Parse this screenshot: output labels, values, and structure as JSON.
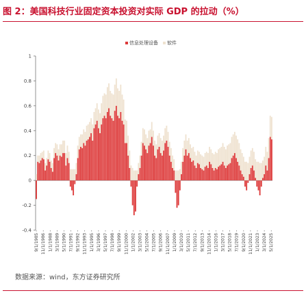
{
  "title": "图 2：美国科技行业固定资本投资对实际 GDP 的拉动（%）",
  "source": "数据来源：wind，东方证券研究所",
  "colors": {
    "title": "#c8102e",
    "series1": "#dd3a3a",
    "series2": "#efe2d0",
    "axis": "#777777"
  },
  "chart_data": {
    "type": "bar",
    "stacked": true,
    "ylim": [
      -0.4,
      1.0
    ],
    "yticks": [
      "-0.4",
      "-0.2",
      "0",
      "0.2",
      "0.4",
      "0.6",
      "0.8",
      "1"
    ],
    "xticks": [
      "9/1/1985",
      "11/1/1986",
      "1/1/1988",
      "3/1/1989",
      "5/1/1990",
      "7/1/1991",
      "9/1/1992",
      "11/1/1993",
      "1/1/1995",
      "3/1/1996",
      "5/1/1997",
      "7/1/1998",
      "9/1/1999",
      "11/1/2000",
      "1/1/2002",
      "3/1/2003",
      "5/1/2004",
      "7/1/2005",
      "9/1/2006",
      "11/1/2007",
      "1/1/2009",
      "3/1/2010",
      "5/1/2011",
      "7/1/2012",
      "9/1/2013",
      "11/1/2014",
      "1/1/2016",
      "3/1/2017",
      "5/1/2018",
      "7/1/2019",
      "9/1/2020",
      "11/1/2021",
      "1/1/2023",
      "3/1/2024",
      "5/1/2025"
    ],
    "x_start": "9/1/1985",
    "legend_position": "top",
    "grid": false,
    "series": [
      {
        "name": "信息处理设备",
        "values": [
          -0.15,
          0.15,
          0.14,
          0.16,
          0.18,
          0.17,
          0.08,
          0.12,
          0.17,
          0.15,
          0.1,
          0.07,
          0.18,
          0.22,
          0.2,
          0.16,
          0.2,
          0.19,
          0.22,
          0.22,
          0.12,
          0.18,
          0.14,
          -0.05,
          -0.08,
          -0.12,
          -0.03,
          0.05,
          0.18,
          0.25,
          0.27,
          0.26,
          0.3,
          0.28,
          0.32,
          0.33,
          0.35,
          0.38,
          0.32,
          0.42,
          0.45,
          0.48,
          0.42,
          0.38,
          0.45,
          0.5,
          0.52,
          0.5,
          0.55,
          0.58,
          0.52,
          0.5,
          0.48,
          0.56,
          0.6,
          0.52,
          0.5,
          0.55,
          0.48,
          0.45,
          0.3,
          0.3,
          0.2,
          0.1,
          -0.05,
          -0.2,
          -0.28,
          -0.25,
          -0.05,
          0.05,
          0.1,
          0.2,
          0.3,
          0.28,
          0.25,
          0.22,
          0.28,
          0.3,
          0.35,
          0.28,
          0.2,
          0.18,
          0.25,
          0.27,
          0.22,
          0.2,
          0.24,
          0.3,
          0.32,
          0.27,
          0.2,
          0.15,
          0.1,
          0.08,
          -0.1,
          -0.22,
          -0.2,
          -0.08,
          0.05,
          0.15,
          0.2,
          0.25,
          0.2,
          0.22,
          0.18,
          0.15,
          0.16,
          0.12,
          0.1,
          0.14,
          0.13,
          0.1,
          0.09,
          0.08,
          0.11,
          0.12,
          0.1,
          0.15,
          0.13,
          0.1,
          0.08,
          0.1,
          0.09,
          0.11,
          0.12,
          0.13,
          0.15,
          0.12,
          0.1,
          0.12,
          0.13,
          0.14,
          0.18,
          0.2,
          0.22,
          0.18,
          0.15,
          0.12,
          0.08,
          0.05,
          0.03,
          -0.05,
          -0.08,
          -0.02,
          0.05,
          0.1,
          0.12,
          0.08,
          0.02,
          -0.05,
          -0.08,
          -0.12,
          -0.05,
          0.02,
          0.05,
          0.12,
          0.08,
          0.18,
          0.35,
          0.33
        ]
      },
      {
        "name": "软件",
        "values": [
          0.05,
          0.05,
          0.06,
          0.06,
          0.05,
          0.07,
          0.06,
          0.06,
          0.07,
          0.07,
          0.06,
          0.07,
          0.08,
          0.08,
          0.09,
          0.09,
          0.09,
          0.1,
          0.1,
          0.1,
          0.1,
          0.1,
          0.09,
          0.09,
          0.09,
          0.09,
          0.09,
          0.09,
          0.1,
          0.1,
          0.1,
          0.11,
          0.11,
          0.11,
          0.12,
          0.12,
          0.12,
          0.12,
          0.13,
          0.13,
          0.13,
          0.14,
          0.15,
          0.16,
          0.17,
          0.18,
          0.18,
          0.19,
          0.2,
          0.2,
          0.2,
          0.2,
          0.21,
          0.21,
          0.22,
          0.22,
          0.22,
          0.22,
          0.21,
          0.2,
          0.19,
          0.18,
          0.16,
          0.14,
          0.12,
          0.1,
          0.08,
          0.08,
          0.08,
          0.09,
          0.1,
          0.11,
          0.12,
          0.13,
          0.12,
          0.12,
          0.12,
          0.11,
          0.12,
          0.12,
          0.12,
          0.11,
          0.11,
          0.11,
          0.12,
          0.12,
          0.12,
          0.12,
          0.12,
          0.12,
          0.11,
          0.11,
          0.1,
          0.09,
          0.08,
          0.08,
          0.08,
          0.09,
          0.1,
          0.11,
          0.12,
          0.12,
          0.12,
          0.12,
          0.11,
          0.11,
          0.11,
          0.11,
          0.1,
          0.1,
          0.1,
          0.11,
          0.11,
          0.11,
          0.11,
          0.11,
          0.12,
          0.12,
          0.12,
          0.12,
          0.13,
          0.13,
          0.13,
          0.14,
          0.14,
          0.14,
          0.15,
          0.15,
          0.15,
          0.16,
          0.16,
          0.16,
          0.17,
          0.17,
          0.17,
          0.18,
          0.18,
          0.18,
          0.17,
          0.17,
          0.16,
          0.15,
          0.15,
          0.14,
          0.14,
          0.14,
          0.14,
          0.15,
          0.15,
          0.15,
          0.15,
          0.14,
          0.14,
          0.14,
          0.14,
          0.15,
          0.15,
          0.16,
          0.17,
          0.18,
          0.22,
          0.25
        ]
      }
    ]
  }
}
